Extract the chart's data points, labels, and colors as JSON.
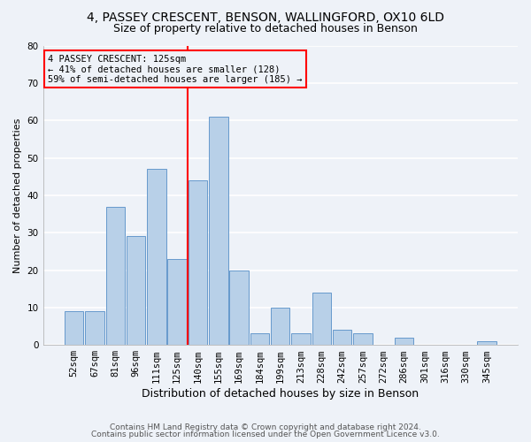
{
  "title1": "4, PASSEY CRESCENT, BENSON, WALLINGFORD, OX10 6LD",
  "title2": "Size of property relative to detached houses in Benson",
  "xlabel": "Distribution of detached houses by size in Benson",
  "ylabel": "Number of detached properties",
  "categories": [
    "52sqm",
    "67sqm",
    "81sqm",
    "96sqm",
    "111sqm",
    "125sqm",
    "140sqm",
    "155sqm",
    "169sqm",
    "184sqm",
    "199sqm",
    "213sqm",
    "228sqm",
    "242sqm",
    "257sqm",
    "272sqm",
    "286sqm",
    "301sqm",
    "316sqm",
    "330sqm",
    "345sqm"
  ],
  "values": [
    9,
    9,
    37,
    29,
    47,
    23,
    44,
    61,
    20,
    3,
    10,
    3,
    14,
    4,
    3,
    0,
    2,
    0,
    0,
    0,
    1
  ],
  "bar_color": "#b8d0e8",
  "bar_edge_color": "#6699cc",
  "vline_x": 5.5,
  "vline_color": "red",
  "annotation_line1": "4 PASSEY CRESCENT: 125sqm",
  "annotation_line2": "← 41% of detached houses are smaller (128)",
  "annotation_line3": "59% of semi-detached houses are larger (185) →",
  "annotation_box_color": "red",
  "ylim": [
    0,
    80
  ],
  "yticks": [
    0,
    10,
    20,
    30,
    40,
    50,
    60,
    70,
    80
  ],
  "footer1": "Contains HM Land Registry data © Crown copyright and database right 2024.",
  "footer2": "Contains public sector information licensed under the Open Government Licence v3.0.",
  "bg_color": "#eef2f8",
  "grid_color": "#ffffff",
  "title1_fontsize": 10,
  "title2_fontsize": 9,
  "xlabel_fontsize": 9,
  "ylabel_fontsize": 8,
  "tick_fontsize": 7.5,
  "footer_fontsize": 6.5
}
